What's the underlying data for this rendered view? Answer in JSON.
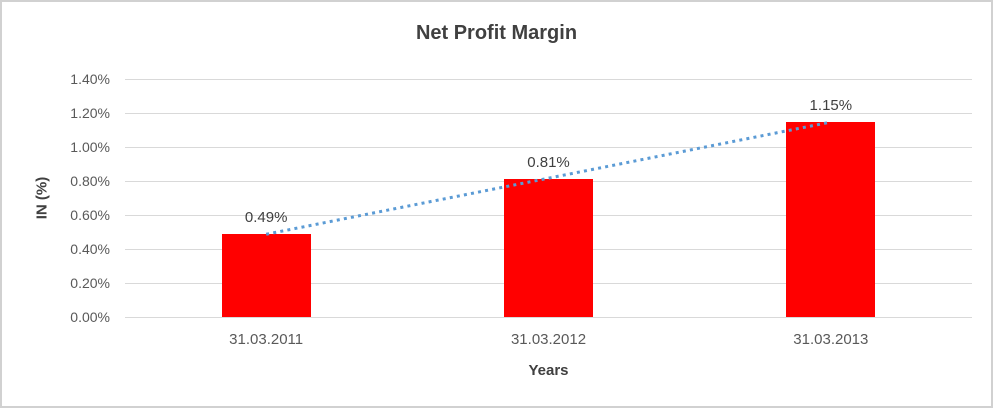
{
  "chart_data": {
    "type": "bar",
    "title": "Net Profit Margin",
    "xlabel": "Years",
    "ylabel": "IN (%)",
    "categories": [
      "31.03.2011",
      "31.03.2012",
      "31.03.2013"
    ],
    "values": [
      0.49,
      0.81,
      1.15
    ],
    "data_labels": [
      "0.49%",
      "0.81%",
      "1.15%"
    ],
    "y_ticks": [
      "0.00%",
      "0.20%",
      "0.40%",
      "0.60%",
      "0.80%",
      "1.00%",
      "1.20%",
      "1.40%"
    ],
    "ylim": [
      0,
      1.4
    ],
    "grid": "horizontal",
    "legend": "none",
    "bar_color": "#ff0000",
    "trendline": {
      "type": "linear",
      "style": "dotted",
      "color": "#5b9bd5"
    },
    "colors": {
      "gridline": "#d9d9d9",
      "title_text": "#404040",
      "tick_text": "#595959",
      "chart_border": "#d1d1d1",
      "background": "#ffffff"
    }
  }
}
